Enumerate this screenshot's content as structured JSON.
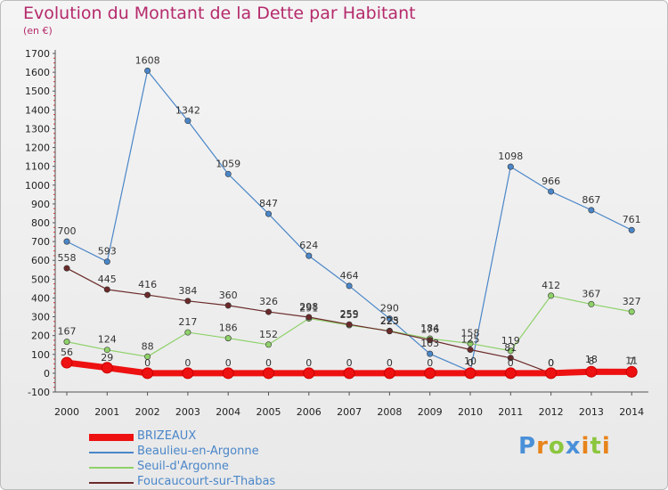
{
  "header": {
    "title": "Evolution du Montant de la Dette par Habitant",
    "unit": "(en €)"
  },
  "logo": {
    "letters": [
      "P",
      "r",
      "o",
      "x",
      "i",
      "t",
      "i"
    ],
    "colors": [
      "#4a90d9",
      "#e8841a",
      "#8cc63f",
      "#4a90d9",
      "#e8841a",
      "#8cc63f",
      "#e8841a"
    ]
  },
  "chart_data": {
    "type": "line",
    "title": "Evolution du Montant de la Dette par Habitant",
    "subtitle": "(en €)",
    "xlabel": "",
    "ylabel": "",
    "x": [
      "2000",
      "2001",
      "2002",
      "2003",
      "2004",
      "2005",
      "2006",
      "2007",
      "2008",
      "2009",
      "2010",
      "2011",
      "2012",
      "2013",
      "2014"
    ],
    "ylim": [
      -100,
      1700
    ],
    "yticks": [
      -100,
      0,
      100,
      200,
      300,
      400,
      500,
      600,
      700,
      800,
      900,
      1000,
      1100,
      1200,
      1300,
      1400,
      1500,
      1600,
      1700
    ],
    "grid": false,
    "legend_position": "bottom-left",
    "series": [
      {
        "name": "BRIZEAUX",
        "color": "#ee1111",
        "values": [
          56,
          29,
          0,
          0,
          0,
          0,
          0,
          0,
          0,
          0,
          0,
          0,
          0,
          8,
          7
        ]
      },
      {
        "name": "Beaulieu-en-Argonne",
        "color": "#4a86c8",
        "values": [
          700,
          593,
          1608,
          1342,
          1059,
          847,
          624,
          464,
          290,
          103,
          10,
          1098,
          966,
          867,
          761
        ]
      },
      {
        "name": "Seuil-d'Argonne",
        "color": "#8fd16a",
        "values": [
          167,
          124,
          88,
          217,
          186,
          152,
          291,
          255,
          225,
          184,
          158,
          119,
          412,
          367,
          327
        ]
      },
      {
        "name": "Foucaucourt-sur-Thabas",
        "color": "#6b2a2a",
        "values": [
          558,
          445,
          416,
          384,
          360,
          326,
          298,
          259,
          223,
          176,
          125,
          81,
          0,
          18,
          11
        ]
      }
    ]
  }
}
